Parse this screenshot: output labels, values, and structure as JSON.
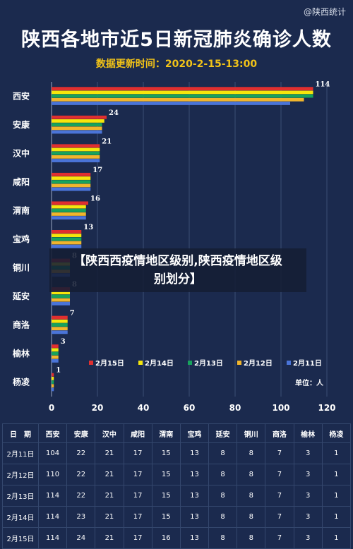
{
  "watermark": "@陕西统计",
  "title": "陕西各地市近5日新冠肺炎确诊人数",
  "subtitle": "数据更新时间：2020-2-15-13:00",
  "overlay": {
    "line1": "【陕西西疫情地区级别,陕西疫情地区级",
    "line2": "别划分】"
  },
  "colors": {
    "background": "#1b2a4e",
    "title": "#ffffff",
    "subtitle": "#f2c318",
    "series": [
      "#e02f2f",
      "#f5e60c",
      "#17a35c",
      "#f1b52c",
      "#4a74d8"
    ]
  },
  "chart_data": {
    "type": "bar",
    "orientation": "horizontal",
    "categories": [
      "西安",
      "安康",
      "汉中",
      "咸阳",
      "渭南",
      "宝鸡",
      "铜川",
      "延安",
      "商洛",
      "榆林",
      "杨凌"
    ],
    "series": [
      {
        "name": "2月15日",
        "values": [
          114,
          24,
          21,
          17,
          16,
          13,
          8,
          8,
          7,
          3,
          1
        ]
      },
      {
        "name": "2月14日",
        "values": [
          114,
          23,
          21,
          17,
          15,
          13,
          8,
          8,
          7,
          3,
          1
        ]
      },
      {
        "name": "2月13日",
        "values": [
          114,
          22,
          21,
          17,
          15,
          13,
          8,
          8,
          7,
          3,
          1
        ]
      },
      {
        "name": "2月12日",
        "values": [
          110,
          22,
          21,
          17,
          15,
          13,
          8,
          8,
          7,
          3,
          1
        ]
      },
      {
        "name": "2月11日",
        "values": [
          104,
          22,
          21,
          17,
          15,
          13,
          8,
          8,
          7,
          3,
          1
        ]
      }
    ],
    "data_labels": [
      114,
      24,
      21,
      17,
      16,
      13,
      8,
      8,
      7,
      3,
      1
    ],
    "xlim": [
      0,
      120
    ],
    "xticks": [
      0,
      20,
      40,
      60,
      80,
      100,
      120
    ],
    "grid": true,
    "legend_position": "bottom-right",
    "unit_label": "单位：人"
  },
  "table": {
    "headers": [
      "日　期",
      "西安",
      "安康",
      "汉中",
      "咸阳",
      "渭南",
      "宝鸡",
      "延安",
      "铜川",
      "商洛",
      "榆林",
      "杨凌"
    ],
    "rows": [
      [
        "2月11日",
        "104",
        "22",
        "21",
        "17",
        "15",
        "13",
        "8",
        "8",
        "7",
        "3",
        "1"
      ],
      [
        "2月12日",
        "110",
        "22",
        "21",
        "17",
        "15",
        "13",
        "8",
        "8",
        "7",
        "3",
        "1"
      ],
      [
        "2月13日",
        "114",
        "22",
        "21",
        "17",
        "15",
        "13",
        "8",
        "8",
        "7",
        "3",
        "1"
      ],
      [
        "2月14日",
        "114",
        "23",
        "21",
        "17",
        "15",
        "13",
        "8",
        "8",
        "7",
        "3",
        "1"
      ],
      [
        "2月15日",
        "114",
        "24",
        "21",
        "17",
        "16",
        "13",
        "8",
        "8",
        "7",
        "3",
        "1"
      ]
    ]
  }
}
